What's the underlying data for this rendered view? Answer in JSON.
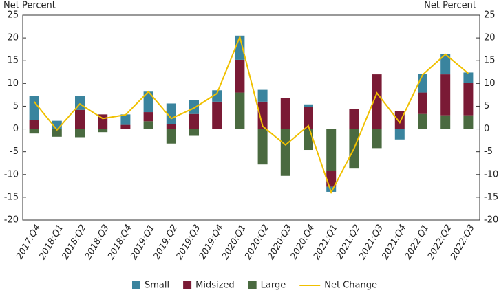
{
  "chart_data": {
    "type": "stacked-bar-line",
    "y_label": "Net Percent",
    "y2_label": "Net Percent",
    "categories": [
      "2017:Q4",
      "2018:Q1",
      "2018:Q2",
      "2018:Q3",
      "2018:Q4",
      "2019:Q1",
      "2019:Q2",
      "2019:Q3",
      "2019:Q4",
      "2020:Q1",
      "2020:Q2",
      "2020:Q3",
      "2020:Q4",
      "2021:Q1",
      "2021:Q2",
      "2021:Q3",
      "2021:Q4",
      "2022:Q1",
      "2022:Q2",
      "2022:Q3"
    ],
    "series": [
      {
        "name": "Small",
        "color": "#3a849e",
        "type": "bar",
        "values": [
          5.3,
          1.8,
          3,
          0,
          2.3,
          4.5,
          4.6,
          3,
          2.5,
          5.3,
          2.6,
          0,
          0.6,
          -1.1,
          0,
          0,
          -2.3,
          4.1,
          4.5,
          2.2
        ]
      },
      {
        "name": "Midsized",
        "color": "#7a1a35",
        "type": "bar",
        "values": [
          2,
          0,
          4.2,
          3.2,
          0.9,
          2,
          1,
          3.3,
          6,
          7.2,
          6,
          6.8,
          4.8,
          -3.5,
          4.4,
          12,
          4,
          4.7,
          9,
          7.2
        ]
      },
      {
        "name": "Large",
        "color": "#4a6a40",
        "type": "bar",
        "values": [
          -1,
          -1.7,
          -1.8,
          -0.7,
          0,
          1.7,
          -3.2,
          -1.5,
          0,
          8,
          -7.8,
          -10.3,
          -4.6,
          -9.2,
          -8.7,
          -4.2,
          0,
          3.3,
          3,
          3
        ]
      },
      {
        "name": "Net Change",
        "color": "#f0c000",
        "type": "line",
        "values": [
          6,
          -0.2,
          5.5,
          2.3,
          3.1,
          8.2,
          2.3,
          4.6,
          7.8,
          20.2,
          0.6,
          -3.5,
          0.7,
          -13.9,
          -4.3,
          7.9,
          1.4,
          11.9,
          16.4,
          12.2
        ]
      }
    ],
    "ylim": [
      -20,
      25
    ],
    "yticks": [
      -20,
      -15,
      -10,
      -5,
      0,
      5,
      10,
      15,
      20,
      25
    ],
    "y2lim": [
      -20,
      25
    ],
    "y2ticks": [
      -20,
      -15,
      -10,
      -5,
      0,
      5,
      10,
      15,
      20,
      25
    ],
    "grid": false
  }
}
